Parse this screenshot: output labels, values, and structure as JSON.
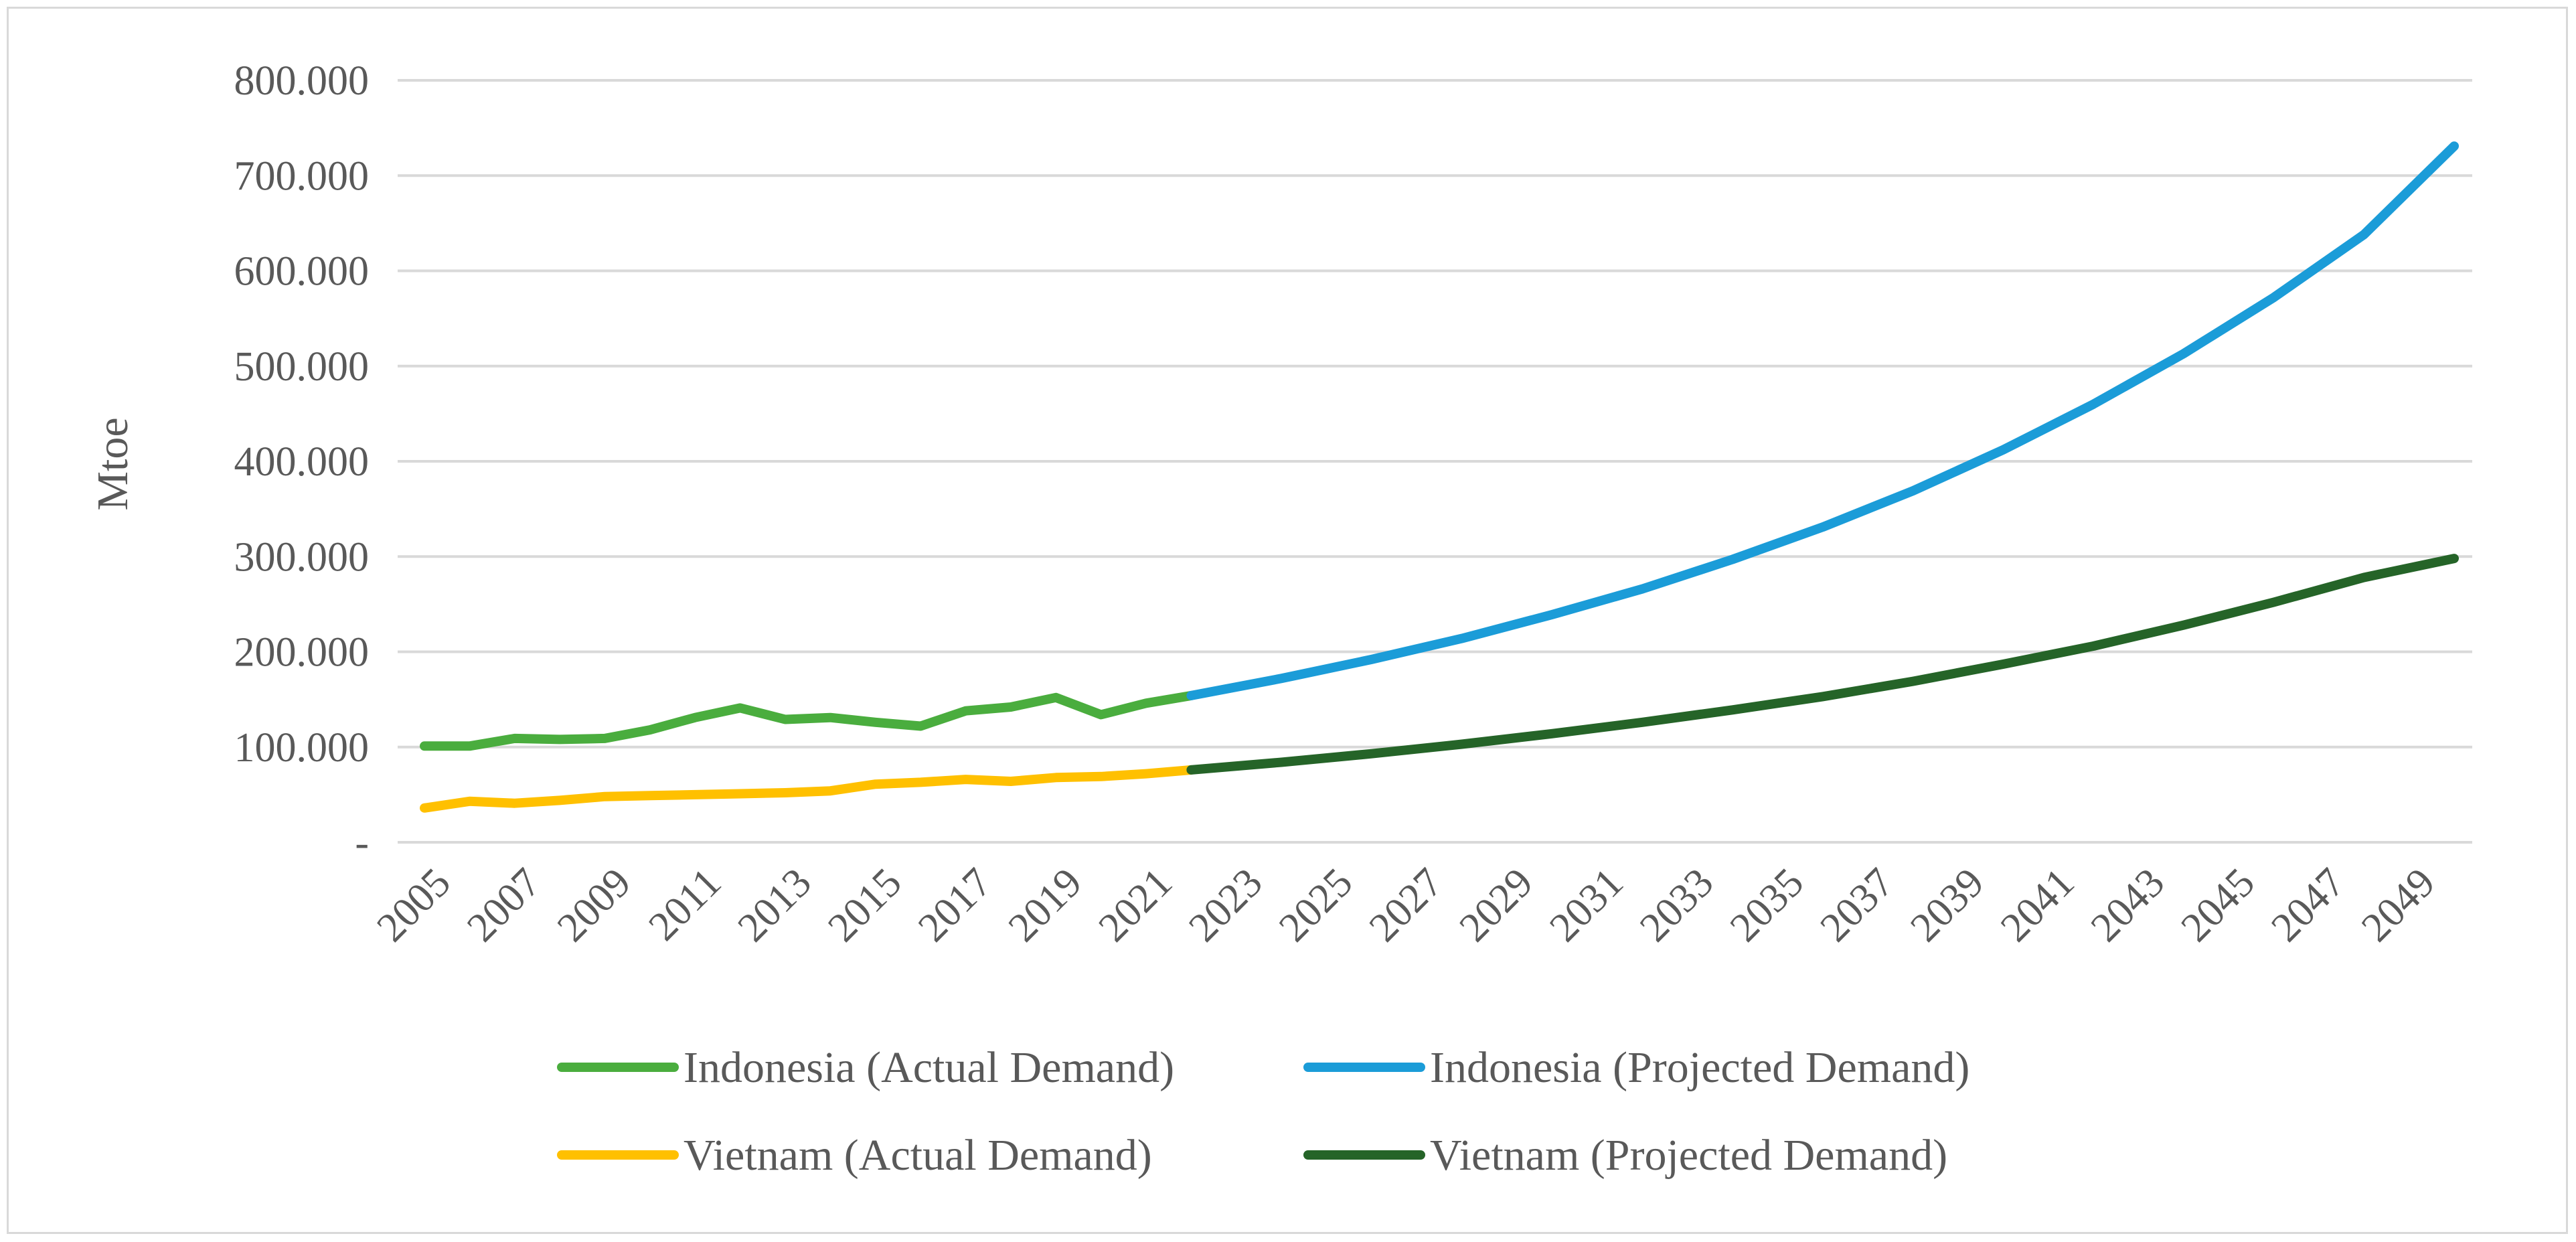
{
  "chart_data": {
    "type": "line",
    "title": "",
    "xlabel": "",
    "ylabel": "Mtoe",
    "ylim": [
      0,
      800
    ],
    "grid": true,
    "legend_position": "bottom",
    "y_ticks": [
      {
        "value": 0,
        "label": "-"
      },
      {
        "value": 100,
        "label": "100.000"
      },
      {
        "value": 200,
        "label": "200.000"
      },
      {
        "value": 300,
        "label": "300.000"
      },
      {
        "value": 400,
        "label": "400.000"
      },
      {
        "value": 500,
        "label": "500.000"
      },
      {
        "value": 600,
        "label": "600.000"
      },
      {
        "value": 700,
        "label": "700.000"
      },
      {
        "value": 800,
        "label": "800.000"
      }
    ],
    "x_range": [
      2005,
      2050
    ],
    "x_tick_labels": [
      "2005",
      "2007",
      "2009",
      "2011",
      "2013",
      "2015",
      "2017",
      "2019",
      "2021",
      "2023",
      "2025",
      "2027",
      "2029",
      "2031",
      "2033",
      "2035",
      "2037",
      "2039",
      "2041",
      "2043",
      "2045",
      "2047",
      "2049"
    ],
    "series": [
      {
        "name": "Indonesia (Actual Demand)",
        "color": "#4aad3e",
        "x": [
          2005,
          2006,
          2007,
          2008,
          2009,
          2010,
          2011,
          2012,
          2013,
          2014,
          2015,
          2016,
          2017,
          2018,
          2019,
          2020,
          2021,
          2022
        ],
        "values": [
          101,
          101,
          109,
          108,
          109,
          118,
          131,
          141,
          129,
          131,
          126,
          122,
          138,
          142,
          152,
          134,
          146,
          154
        ]
      },
      {
        "name": "Indonesia (Projected Demand)",
        "color": "#1b9cd8",
        "x": [
          2022,
          2024,
          2026,
          2028,
          2030,
          2032,
          2034,
          2036,
          2038,
          2040,
          2042,
          2044,
          2046,
          2048,
          2050
        ],
        "values": [
          154,
          172,
          192,
          214,
          239,
          266,
          297,
          331,
          369,
          412,
          460,
          513,
          572,
          638,
          731
        ]
      },
      {
        "name": "Vietnam (Actual Demand)",
        "color": "#ffc000",
        "x": [
          2005,
          2006,
          2007,
          2008,
          2009,
          2010,
          2011,
          2012,
          2013,
          2014,
          2015,
          2016,
          2017,
          2018,
          2019,
          2020,
          2021,
          2022
        ],
        "values": [
          36,
          43,
          41,
          44,
          48,
          49,
          50,
          51,
          52,
          54,
          61,
          63,
          66,
          64,
          68,
          69,
          72,
          76
        ]
      },
      {
        "name": "Vietnam (Projected Demand)",
        "color": "#256428",
        "x": [
          2022,
          2024,
          2026,
          2028,
          2030,
          2032,
          2034,
          2036,
          2038,
          2040,
          2042,
          2044,
          2046,
          2048,
          2050
        ],
        "values": [
          76,
          84,
          93,
          103,
          114,
          126,
          139,
          153,
          169,
          187,
          206,
          228,
          252,
          278,
          298
        ]
      }
    ]
  }
}
